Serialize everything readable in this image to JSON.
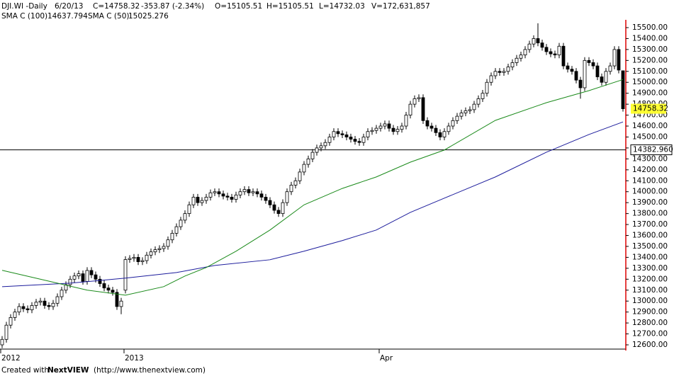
{
  "chart_data": {
    "type": "candlestick",
    "header": {
      "symbol": "DJI.WI -Daily",
      "date": "6/20/13",
      "close_text": "C=14758.32",
      "change": "-353.87 (-2.34%)",
      "open_text": "O=15105.51",
      "high_text": "H=15105.51",
      "low_text": "L=14732.03",
      "volume_text": "V=172,631,857"
    },
    "open": [
      12600,
      12650,
      12780,
      12850,
      12900,
      12950,
      12930,
      12920,
      12960,
      12990,
      13000,
      12960,
      12950,
      12980,
      13040,
      13100,
      13150,
      13200,
      13230,
      13250,
      13180,
      13280,
      13240,
      13200,
      13160,
      13120,
      13100,
      13080,
      12950,
      13100,
      13380,
      13390,
      13400,
      13360,
      13370,
      13420,
      13450,
      13470,
      13480,
      13500,
      13560,
      13620,
      13680,
      13740,
      13800,
      13880,
      13950,
      13900,
      13920,
      13950,
      13990,
      14000,
      13980,
      13960,
      13950,
      13930,
      13970,
      14000,
      14020,
      13990,
      14000,
      13980,
      13950,
      13920,
      13880,
      13830,
      13800,
      13900,
      14000,
      14060,
      14100,
      14180,
      14250,
      14300,
      14360,
      14400,
      14420,
      14450,
      14500,
      14550,
      14530,
      14520,
      14500,
      14480,
      14460,
      14450,
      14500,
      14550,
      14560,
      14580,
      14600,
      14620,
      14580,
      14550,
      14570,
      14600,
      14700,
      14800,
      14850,
      14860,
      14650,
      14600,
      14580,
      14540,
      14500,
      14550,
      14600,
      14650,
      14690,
      14720,
      14740,
      14750,
      14800,
      14850,
      14900,
      15000,
      15060,
      15100,
      15090,
      15100,
      15140,
      15180,
      15220,
      15250,
      15300,
      15350,
      15400,
      15360,
      15320,
      15280,
      15260,
      15250,
      15330,
      15150,
      15120,
      15100,
      15020,
      14950,
      15200,
      15180,
      15150,
      15050,
      15000,
      15100,
      15150,
      15300,
      15105.51
    ],
    "high": [
      12680,
      12810,
      12880,
      12930,
      12980,
      12980,
      12960,
      12990,
      13020,
      13030,
      13030,
      12990,
      13010,
      13070,
      13130,
      13180,
      13230,
      13260,
      13280,
      13280,
      13310,
      13310,
      13270,
      13230,
      13190,
      13150,
      13130,
      13110,
      13030,
      13410,
      13420,
      13430,
      13430,
      13400,
      13450,
      13480,
      13500,
      13510,
      13530,
      13590,
      13650,
      13710,
      13770,
      13830,
      13910,
      13980,
      13980,
      13950,
      13980,
      14020,
      14030,
      14030,
      14010,
      13990,
      13980,
      14000,
      14030,
      14050,
      14050,
      14030,
      14030,
      14010,
      13980,
      13950,
      13910,
      13860,
      13930,
      14030,
      14090,
      14130,
      14210,
      14280,
      14330,
      14390,
      14430,
      14450,
      14480,
      14530,
      14580,
      14580,
      14560,
      14550,
      14530,
      14510,
      14490,
      14530,
      14580,
      14590,
      14610,
      14630,
      14650,
      14650,
      14610,
      14600,
      14630,
      14730,
      14830,
      14880,
      14890,
      14890,
      14680,
      14630,
      14610,
      14570,
      14580,
      14630,
      14680,
      14720,
      14750,
      14770,
      14780,
      14830,
      14880,
      14930,
      15030,
      15090,
      15130,
      15130,
      15130,
      15170,
      15210,
      15250,
      15280,
      15330,
      15380,
      15430,
      15540,
      15390,
      15350,
      15310,
      15290,
      15360,
      15360,
      15180,
      15150,
      15130,
      15050,
      15230,
      15230,
      15210,
      15180,
      15080,
      15130,
      15180,
      15330,
      15330,
      15105.51
    ],
    "low": [
      12570,
      12620,
      12750,
      12820,
      12870,
      12900,
      12890,
      12890,
      12930,
      12960,
      12930,
      12920,
      12920,
      12950,
      13010,
      13070,
      13120,
      13170,
      13200,
      13150,
      13150,
      13210,
      13170,
      13130,
      13090,
      13070,
      13050,
      12920,
      12880,
      13070,
      13350,
      13360,
      13330,
      13330,
      13340,
      13390,
      13420,
      13440,
      13450,
      13470,
      13530,
      13590,
      13650,
      13710,
      13770,
      13850,
      13870,
      13870,
      13890,
      13920,
      13960,
      13950,
      13930,
      13920,
      13900,
      13900,
      13940,
      13970,
      13960,
      13960,
      13950,
      13920,
      13890,
      13850,
      13800,
      13770,
      13770,
      13870,
      13970,
      14030,
      14070,
      14150,
      14220,
      14270,
      14330,
      14370,
      14390,
      14420,
      14470,
      14500,
      14490,
      14470,
      14450,
      14430,
      14420,
      14420,
      14470,
      14520,
      14530,
      14550,
      14570,
      14550,
      14520,
      14520,
      14540,
      14570,
      14670,
      14770,
      14820,
      14620,
      14570,
      14550,
      14510,
      14470,
      14470,
      14520,
      14570,
      14620,
      14660,
      14690,
      14710,
      14720,
      14770,
      14820,
      14870,
      14970,
      15030,
      15060,
      15060,
      15070,
      15110,
      15150,
      15190,
      15220,
      15270,
      15320,
      15330,
      15290,
      15250,
      15230,
      15220,
      15220,
      15120,
      15090,
      15070,
      14990,
      14850,
      14920,
      15150,
      15120,
      15020,
      14970,
      14970,
      15070,
      15120,
      15082,
      14732.03
    ],
    "close": [
      12650,
      12780,
      12850,
      12900,
      12950,
      12930,
      12920,
      12960,
      12990,
      13000,
      12960,
      12950,
      12980,
      13040,
      13100,
      13150,
      13200,
      13230,
      13250,
      13180,
      13280,
      13240,
      13200,
      13160,
      13120,
      13100,
      13080,
      12950,
      13000,
      13380,
      13390,
      13400,
      13360,
      13370,
      13420,
      13450,
      13470,
      13480,
      13500,
      13560,
      13620,
      13680,
      13740,
      13800,
      13880,
      13950,
      13900,
      13920,
      13950,
      13990,
      14000,
      13980,
      13960,
      13950,
      13930,
      13970,
      14000,
      14020,
      13990,
      14000,
      13980,
      13950,
      13920,
      13880,
      13830,
      13800,
      13900,
      14000,
      14060,
      14100,
      14180,
      14250,
      14300,
      14360,
      14400,
      14420,
      14450,
      14500,
      14550,
      14530,
      14520,
      14500,
      14480,
      14460,
      14450,
      14500,
      14550,
      14560,
      14580,
      14600,
      14620,
      14580,
      14550,
      14570,
      14600,
      14700,
      14800,
      14850,
      14860,
      14650,
      14600,
      14580,
      14540,
      14500,
      14550,
      14600,
      14650,
      14690,
      14720,
      14740,
      14750,
      14800,
      14850,
      14900,
      15000,
      15060,
      15100,
      15090,
      15100,
      15140,
      15180,
      15220,
      15250,
      15300,
      15350,
      15400,
      15360,
      15320,
      15280,
      15260,
      15250,
      15330,
      15150,
      15120,
      15100,
      15020,
      14950,
      15200,
      15180,
      15150,
      15050,
      15000,
      15100,
      15150,
      15300,
      15112,
      14758.32
    ],
    "series": [
      {
        "name": "SMA C (100)",
        "value_label": "14637.794",
        "color": "#1c1c9c",
        "x": [
          0,
          16,
          29,
          41,
          50,
          63,
          71,
          80,
          88,
          96,
          104,
          116,
          128,
          138,
          146
        ],
        "values": [
          13132,
          13164,
          13210,
          13261,
          13326,
          13378,
          13456,
          13553,
          13650,
          13811,
          13941,
          14135,
          14361,
          14523,
          14637.794
        ]
      },
      {
        "name": "SMA C (50)",
        "value_label": "15025.276",
        "color": "#1a8a1a",
        "x": [
          0,
          13,
          20,
          29,
          38,
          43,
          48,
          55,
          63,
          71,
          80,
          88,
          96,
          104,
          116,
          128,
          138,
          146
        ],
        "values": [
          13281,
          13164,
          13100,
          13054,
          13132,
          13229,
          13307,
          13456,
          13650,
          13880,
          14030,
          14135,
          14270,
          14381,
          14652,
          14814,
          14924,
          15025.276
        ]
      }
    ],
    "hline": {
      "value": 14382.96,
      "label": "14382.960"
    },
    "price_marker": {
      "value": 14758.32,
      "label": "14758.32"
    },
    "xticks": [
      {
        "value": 0,
        "label": "2012"
      },
      {
        "value": 29,
        "label": "2013"
      },
      {
        "value": 89,
        "label": "Apr"
      }
    ],
    "ylim": [
      12600,
      15500
    ],
    "yticks": [
      {
        "value": 12600,
        "label": "12600.00"
      },
      {
        "value": 12700,
        "label": "12700.00"
      },
      {
        "value": 12800,
        "label": "12800.00"
      },
      {
        "value": 12900,
        "label": "12900.00"
      },
      {
        "value": 13000,
        "label": "13000.00"
      },
      {
        "value": 13100,
        "label": "13100.00"
      },
      {
        "value": 13200,
        "label": "13200.00"
      },
      {
        "value": 13300,
        "label": "13300.00"
      },
      {
        "value": 13400,
        "label": "13400.00"
      },
      {
        "value": 13500,
        "label": "13500.00"
      },
      {
        "value": 13600,
        "label": "13600.00"
      },
      {
        "value": 13700,
        "label": "13700.00"
      },
      {
        "value": 13800,
        "label": "13800.00"
      },
      {
        "value": 13900,
        "label": "13900.00"
      },
      {
        "value": 14000,
        "label": "14000.00"
      },
      {
        "value": 14100,
        "label": "14100.00"
      },
      {
        "value": 14200,
        "label": "14200.00"
      },
      {
        "value": 14300,
        "label": "14300.00"
      },
      {
        "value": 14400,
        "label": "14400.00"
      },
      {
        "value": 14500,
        "label": "14500.00"
      },
      {
        "value": 14600,
        "label": "14600.00"
      },
      {
        "value": 14700,
        "label": "14700.00"
      },
      {
        "value": 14800,
        "label": "14800.00"
      },
      {
        "value": 14900,
        "label": "14900.00"
      },
      {
        "value": 15000,
        "label": "15000.00"
      },
      {
        "value": 15100,
        "label": "15100.00"
      },
      {
        "value": 15200,
        "label": "15200.00"
      },
      {
        "value": 15300,
        "label": "15300.00"
      },
      {
        "value": 15400,
        "label": "15400.00"
      },
      {
        "value": 15500,
        "label": "15500.00"
      }
    ],
    "footer": {
      "prefix": "Created with",
      "brand": "NextVIEW",
      "url": "(http://www.thenextview.com)"
    }
  }
}
